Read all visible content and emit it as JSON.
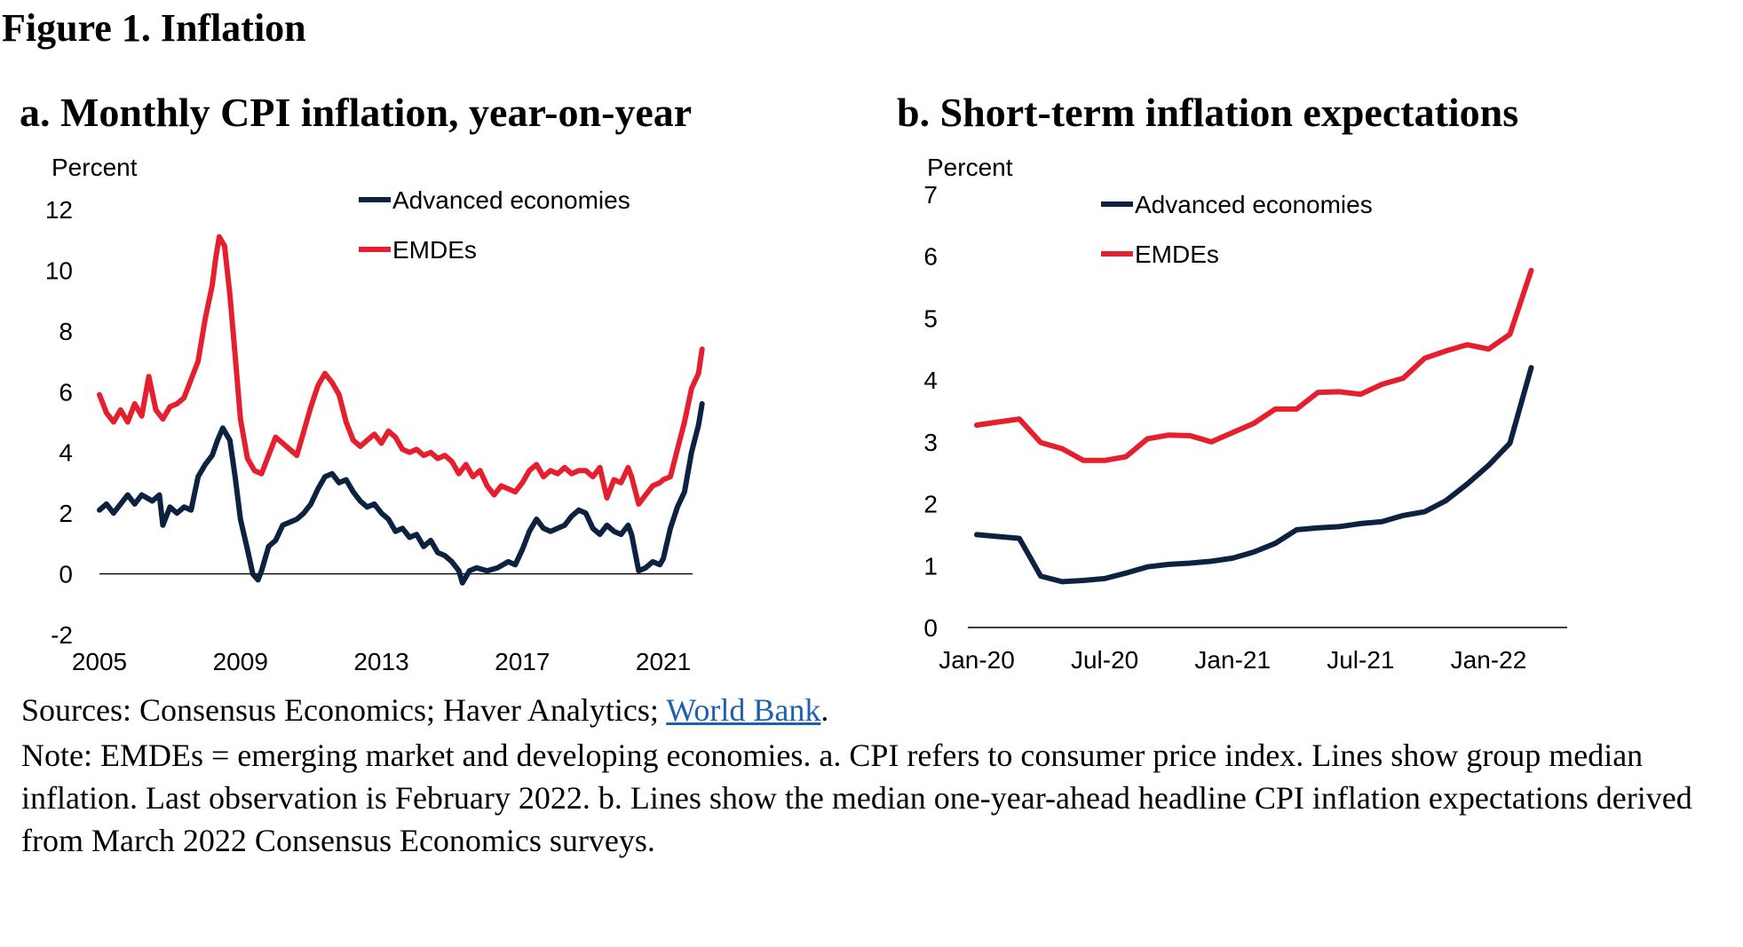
{
  "figure_title": "Figure 1. Inflation",
  "sources_prefix": "Sources: Consensus Economics; Haver Analytics; ",
  "sources_link": "World Bank",
  "sources_suffix": ".",
  "note": "Note: EMDEs = emerging market and developing economies. a. CPI refers to consumer price index. Lines show group median inflation. Last observation is February 2022. b. Lines show the median one-year-ahead headline CPI inflation expectations derived from March 2022 Consensus Economics surveys.",
  "colors": {
    "advanced": "#0d2240",
    "emdes": "#e5202e"
  },
  "chart_data": [
    {
      "type": "line",
      "title": "a. Monthly CPI inflation, year-on-year",
      "ylabel": "Percent",
      "ylim": [
        -2,
        12
      ],
      "yticks": [
        "-2",
        "0",
        "2",
        "4",
        "6",
        "8",
        "10",
        "12"
      ],
      "xlim": [
        2005,
        2022.2
      ],
      "xticks": [
        {
          "x": 2005,
          "label": "2005"
        },
        {
          "x": 2009,
          "label": "2009"
        },
        {
          "x": 2013,
          "label": "2013"
        },
        {
          "x": 2017,
          "label": "2017"
        },
        {
          "x": 2021,
          "label": "2021"
        }
      ],
      "legend": "top-center",
      "series": [
        {
          "name": "Advanced economies",
          "color": "#0d2240",
          "points": [
            [
              2005.0,
              2.1
            ],
            [
              2005.2,
              2.3
            ],
            [
              2005.4,
              2.0
            ],
            [
              2005.6,
              2.3
            ],
            [
              2005.8,
              2.6
            ],
            [
              2006.0,
              2.3
            ],
            [
              2006.2,
              2.6
            ],
            [
              2006.5,
              2.4
            ],
            [
              2006.7,
              2.6
            ],
            [
              2006.8,
              1.6
            ],
            [
              2007.0,
              2.2
            ],
            [
              2007.2,
              2.0
            ],
            [
              2007.4,
              2.2
            ],
            [
              2007.6,
              2.1
            ],
            [
              2007.8,
              3.2
            ],
            [
              2008.0,
              3.6
            ],
            [
              2008.2,
              3.9
            ],
            [
              2008.35,
              4.4
            ],
            [
              2008.5,
              4.8
            ],
            [
              2008.7,
              4.4
            ],
            [
              2008.85,
              3.2
            ],
            [
              2009.0,
              1.8
            ],
            [
              2009.2,
              0.8
            ],
            [
              2009.35,
              0.0
            ],
            [
              2009.5,
              -0.2
            ],
            [
              2009.6,
              0.1
            ],
            [
              2009.8,
              0.9
            ],
            [
              2010.0,
              1.1
            ],
            [
              2010.2,
              1.6
            ],
            [
              2010.4,
              1.7
            ],
            [
              2010.6,
              1.8
            ],
            [
              2010.8,
              2.0
            ],
            [
              2011.0,
              2.3
            ],
            [
              2011.2,
              2.8
            ],
            [
              2011.4,
              3.2
            ],
            [
              2011.6,
              3.3
            ],
            [
              2011.8,
              3.0
            ],
            [
              2012.0,
              3.1
            ],
            [
              2012.2,
              2.7
            ],
            [
              2012.4,
              2.4
            ],
            [
              2012.6,
              2.2
            ],
            [
              2012.8,
              2.3
            ],
            [
              2013.0,
              2.0
            ],
            [
              2013.2,
              1.8
            ],
            [
              2013.4,
              1.4
            ],
            [
              2013.6,
              1.5
            ],
            [
              2013.8,
              1.2
            ],
            [
              2014.0,
              1.3
            ],
            [
              2014.2,
              0.9
            ],
            [
              2014.4,
              1.1
            ],
            [
              2014.6,
              0.7
            ],
            [
              2014.8,
              0.6
            ],
            [
              2015.0,
              0.4
            ],
            [
              2015.2,
              0.1
            ],
            [
              2015.3,
              -0.3
            ],
            [
              2015.5,
              0.1
            ],
            [
              2015.7,
              0.2
            ],
            [
              2016.0,
              0.1
            ],
            [
              2016.3,
              0.2
            ],
            [
              2016.6,
              0.4
            ],
            [
              2016.8,
              0.3
            ],
            [
              2017.0,
              0.8
            ],
            [
              2017.2,
              1.4
            ],
            [
              2017.4,
              1.8
            ],
            [
              2017.6,
              1.5
            ],
            [
              2017.8,
              1.4
            ],
            [
              2018.0,
              1.5
            ],
            [
              2018.2,
              1.6
            ],
            [
              2018.4,
              1.9
            ],
            [
              2018.6,
              2.1
            ],
            [
              2018.8,
              2.0
            ],
            [
              2019.0,
              1.5
            ],
            [
              2019.2,
              1.3
            ],
            [
              2019.4,
              1.6
            ],
            [
              2019.6,
              1.4
            ],
            [
              2019.8,
              1.3
            ],
            [
              2020.0,
              1.6
            ],
            [
              2020.1,
              1.3
            ],
            [
              2020.3,
              0.1
            ],
            [
              2020.5,
              0.2
            ],
            [
              2020.7,
              0.4
            ],
            [
              2020.9,
              0.3
            ],
            [
              2021.0,
              0.5
            ],
            [
              2021.2,
              1.5
            ],
            [
              2021.4,
              2.2
            ],
            [
              2021.6,
              2.7
            ],
            [
              2021.8,
              4.0
            ],
            [
              2022.0,
              4.9
            ],
            [
              2022.1,
              5.6
            ]
          ]
        },
        {
          "name": "EMDEs",
          "color": "#e5202e",
          "points": [
            [
              2005.0,
              5.9
            ],
            [
              2005.2,
              5.3
            ],
            [
              2005.4,
              5.0
            ],
            [
              2005.6,
              5.4
            ],
            [
              2005.8,
              5.0
            ],
            [
              2006.0,
              5.6
            ],
            [
              2006.2,
              5.2
            ],
            [
              2006.4,
              6.5
            ],
            [
              2006.6,
              5.4
            ],
            [
              2006.8,
              5.1
            ],
            [
              2007.0,
              5.5
            ],
            [
              2007.2,
              5.6
            ],
            [
              2007.4,
              5.8
            ],
            [
              2007.6,
              6.4
            ],
            [
              2007.8,
              7.0
            ],
            [
              2008.0,
              8.4
            ],
            [
              2008.2,
              9.5
            ],
            [
              2008.3,
              10.4
            ],
            [
              2008.4,
              11.1
            ],
            [
              2008.55,
              10.8
            ],
            [
              2008.7,
              9.2
            ],
            [
              2008.85,
              7.2
            ],
            [
              2009.0,
              5.1
            ],
            [
              2009.2,
              3.8
            ],
            [
              2009.4,
              3.4
            ],
            [
              2009.6,
              3.3
            ],
            [
              2009.8,
              3.9
            ],
            [
              2010.0,
              4.5
            ],
            [
              2010.2,
              4.3
            ],
            [
              2010.4,
              4.1
            ],
            [
              2010.6,
              3.9
            ],
            [
              2010.8,
              4.7
            ],
            [
              2011.0,
              5.5
            ],
            [
              2011.2,
              6.2
            ],
            [
              2011.4,
              6.6
            ],
            [
              2011.6,
              6.3
            ],
            [
              2011.8,
              5.9
            ],
            [
              2012.0,
              5.0
            ],
            [
              2012.2,
              4.4
            ],
            [
              2012.4,
              4.2
            ],
            [
              2012.6,
              4.4
            ],
            [
              2012.8,
              4.6
            ],
            [
              2013.0,
              4.3
            ],
            [
              2013.2,
              4.7
            ],
            [
              2013.4,
              4.5
            ],
            [
              2013.6,
              4.1
            ],
            [
              2013.8,
              4.0
            ],
            [
              2014.0,
              4.1
            ],
            [
              2014.2,
              3.9
            ],
            [
              2014.4,
              4.0
            ],
            [
              2014.6,
              3.8
            ],
            [
              2014.8,
              3.9
            ],
            [
              2015.0,
              3.7
            ],
            [
              2015.2,
              3.3
            ],
            [
              2015.4,
              3.6
            ],
            [
              2015.6,
              3.2
            ],
            [
              2015.8,
              3.4
            ],
            [
              2016.0,
              2.9
            ],
            [
              2016.2,
              2.6
            ],
            [
              2016.4,
              2.9
            ],
            [
              2016.6,
              2.8
            ],
            [
              2016.8,
              2.7
            ],
            [
              2017.0,
              3.0
            ],
            [
              2017.2,
              3.4
            ],
            [
              2017.4,
              3.6
            ],
            [
              2017.6,
              3.2
            ],
            [
              2017.8,
              3.4
            ],
            [
              2018.0,
              3.3
            ],
            [
              2018.2,
              3.5
            ],
            [
              2018.4,
              3.3
            ],
            [
              2018.6,
              3.4
            ],
            [
              2018.8,
              3.4
            ],
            [
              2019.0,
              3.2
            ],
            [
              2019.2,
              3.5
            ],
            [
              2019.4,
              2.5
            ],
            [
              2019.6,
              3.1
            ],
            [
              2019.8,
              3.0
            ],
            [
              2020.0,
              3.5
            ],
            [
              2020.1,
              3.2
            ],
            [
              2020.3,
              2.3
            ],
            [
              2020.5,
              2.6
            ],
            [
              2020.7,
              2.9
            ],
            [
              2020.9,
              3.0
            ],
            [
              2021.0,
              3.1
            ],
            [
              2021.2,
              3.2
            ],
            [
              2021.4,
              4.1
            ],
            [
              2021.6,
              5.0
            ],
            [
              2021.8,
              6.1
            ],
            [
              2022.0,
              6.6
            ],
            [
              2022.1,
              7.4
            ]
          ]
        }
      ]
    },
    {
      "type": "line",
      "title": "b. Short-term inflation expectations",
      "ylabel": "Percent",
      "ylim": [
        0,
        7
      ],
      "yticks": [
        "0",
        "1",
        "2",
        "3",
        "4",
        "5",
        "6",
        "7"
      ],
      "xlim": [
        "Jan-20",
        "Mar-22"
      ],
      "xticks": [
        {
          "x": "Jan-20",
          "label": "Jan-20"
        },
        {
          "x": "Jul-20",
          "label": "Jul-20"
        },
        {
          "x": "Jan-21",
          "label": "Jan-21"
        },
        {
          "x": "Jul-21",
          "label": "Jul-21"
        },
        {
          "x": "Jan-22",
          "label": "Jan-22"
        }
      ],
      "legend": "top-center",
      "series": [
        {
          "name": "Advanced economies",
          "color": "#0d2240",
          "x": [
            "Jan-20",
            "Feb-20",
            "Mar-20",
            "Apr-20",
            "May-20",
            "Jun-20",
            "Jul-20",
            "Aug-20",
            "Sep-20",
            "Oct-20",
            "Nov-20",
            "Dec-20",
            "Jan-21",
            "Feb-21",
            "Mar-21",
            "Apr-21",
            "May-21",
            "Jun-21",
            "Jul-21",
            "Aug-21",
            "Sep-21",
            "Oct-21",
            "Nov-21",
            "Dec-21",
            "Jan-22",
            "Feb-22",
            "Mar-22"
          ],
          "values": [
            1.5,
            1.47,
            1.44,
            0.83,
            0.74,
            0.76,
            0.79,
            0.88,
            0.98,
            1.02,
            1.04,
            1.07,
            1.12,
            1.22,
            1.36,
            1.58,
            1.61,
            1.63,
            1.68,
            1.71,
            1.81,
            1.87,
            2.05,
            2.32,
            2.62,
            2.98,
            4.2
          ]
        },
        {
          "name": "EMDEs",
          "color": "#e5202e",
          "x": [
            "Jan-20",
            "Feb-20",
            "Mar-20",
            "Apr-20",
            "May-20",
            "Jun-20",
            "Jul-20",
            "Aug-20",
            "Sep-20",
            "Oct-20",
            "Nov-20",
            "Dec-20",
            "Jan-21",
            "Feb-21",
            "Mar-21",
            "Apr-21",
            "May-21",
            "Jun-21",
            "Jul-21",
            "Aug-21",
            "Sep-21",
            "Oct-21",
            "Nov-21",
            "Dec-21",
            "Jan-22",
            "Feb-22",
            "Mar-22"
          ],
          "values": [
            3.27,
            3.32,
            3.37,
            2.99,
            2.89,
            2.7,
            2.7,
            2.76,
            3.05,
            3.11,
            3.1,
            3.0,
            3.15,
            3.3,
            3.53,
            3.53,
            3.8,
            3.81,
            3.77,
            3.93,
            4.03,
            4.35,
            4.47,
            4.57,
            4.5,
            4.74,
            5.77
          ]
        }
      ]
    }
  ]
}
